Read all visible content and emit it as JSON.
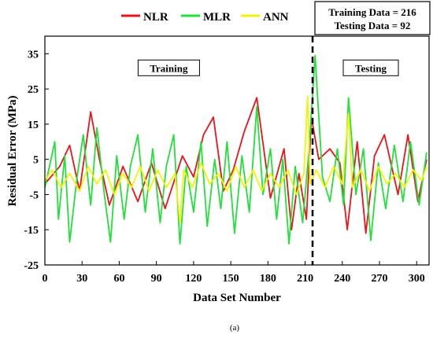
{
  "chart_data": {
    "type": "line",
    "xlabel": "Data Set Number",
    "ylabel": "Residual Error (MPa)",
    "xlim": [
      0,
      310
    ],
    "ylim": [
      -25,
      40
    ],
    "x_ticks": [
      0,
      30,
      60,
      90,
      120,
      150,
      180,
      210,
      240,
      270,
      300
    ],
    "y_ticks": [
      -25,
      -15,
      -5,
      5,
      15,
      25,
      35
    ],
    "grid": false,
    "legend_placement": "top",
    "caption": "(a)",
    "info_box": [
      "Training Data = 216",
      "Testing Data = 92"
    ],
    "split_x": 216,
    "region_labels": [
      {
        "text": "Training",
        "x": 100,
        "y": 31
      },
      {
        "text": "Testing",
        "x": 263,
        "y": 31
      }
    ],
    "series": [
      {
        "name": "NLR",
        "color": "#e8141c",
        "points": [
          [
            0,
            -2
          ],
          [
            12,
            3
          ],
          [
            20,
            9
          ],
          [
            28,
            -4
          ],
          [
            37,
            18.5
          ],
          [
            44,
            5
          ],
          [
            52,
            -8
          ],
          [
            63,
            3
          ],
          [
            75,
            -7
          ],
          [
            86,
            4
          ],
          [
            97,
            -9
          ],
          [
            111,
            6
          ],
          [
            120,
            0
          ],
          [
            128,
            12
          ],
          [
            136,
            17
          ],
          [
            144,
            -4
          ],
          [
            152,
            2
          ],
          [
            161,
            13
          ],
          [
            171,
            22.5
          ],
          [
            182,
            -6
          ],
          [
            193,
            8
          ],
          [
            199,
            -15
          ],
          [
            205,
            1
          ],
          [
            211,
            -12
          ],
          [
            215,
            17
          ],
          [
            221,
            5
          ],
          [
            230,
            8
          ],
          [
            238,
            4
          ],
          [
            244,
            -15
          ],
          [
            252,
            10
          ],
          [
            259,
            -16
          ],
          [
            266,
            6
          ],
          [
            274,
            12
          ],
          [
            285,
            -5
          ],
          [
            293,
            12
          ],
          [
            301,
            -7
          ],
          [
            308,
            5
          ]
        ]
      },
      {
        "name": "MLR",
        "color": "#22e03a",
        "points": [
          [
            0,
            -3
          ],
          [
            8,
            10
          ],
          [
            11,
            -12
          ],
          [
            16,
            6
          ],
          [
            20,
            -18.5
          ],
          [
            26,
            0
          ],
          [
            31,
            12
          ],
          [
            37,
            -8
          ],
          [
            42,
            14
          ],
          [
            48,
            -5
          ],
          [
            53,
            -18.5
          ],
          [
            58,
            6
          ],
          [
            64,
            -12
          ],
          [
            69,
            3
          ],
          [
            75,
            12
          ],
          [
            81,
            -10
          ],
          [
            87,
            8
          ],
          [
            93,
            -13
          ],
          [
            98,
            3
          ],
          [
            104,
            12
          ],
          [
            109,
            -19
          ],
          [
            114,
            3
          ],
          [
            120,
            -10
          ],
          [
            126,
            10
          ],
          [
            131,
            -14
          ],
          [
            137,
            5
          ],
          [
            142,
            -9
          ],
          [
            147,
            10
          ],
          [
            153,
            -16
          ],
          [
            159,
            6
          ],
          [
            165,
            -10
          ],
          [
            171,
            20
          ],
          [
            176,
            -5
          ],
          [
            182,
            8
          ],
          [
            187,
            -12
          ],
          [
            192,
            5
          ],
          [
            197,
            -19
          ],
          [
            202,
            3
          ],
          [
            208,
            -13
          ],
          [
            213,
            7
          ],
          [
            218,
            34.5
          ],
          [
            224,
            0
          ],
          [
            230,
            -7
          ],
          [
            236,
            8
          ],
          [
            241,
            -8
          ],
          [
            245,
            22.5
          ],
          [
            251,
            -5
          ],
          [
            257,
            8
          ],
          [
            263,
            -18
          ],
          [
            269,
            4
          ],
          [
            275,
            -9
          ],
          [
            282,
            9
          ],
          [
            289,
            -7
          ],
          [
            295,
            10
          ],
          [
            302,
            -8
          ],
          [
            308,
            7
          ]
        ]
      },
      {
        "name": "ANN",
        "color": "#f5f20a",
        "points": [
          [
            0,
            -1
          ],
          [
            6,
            2
          ],
          [
            13,
            -3
          ],
          [
            20,
            1
          ],
          [
            28,
            -4
          ],
          [
            35,
            3
          ],
          [
            42,
            -2
          ],
          [
            49,
            2
          ],
          [
            56,
            -5
          ],
          [
            63,
            1
          ],
          [
            70,
            -3
          ],
          [
            77,
            3
          ],
          [
            84,
            -4
          ],
          [
            91,
            2
          ],
          [
            98,
            -3
          ],
          [
            105,
            1
          ],
          [
            109,
            -13
          ],
          [
            112,
            2
          ],
          [
            119,
            -3
          ],
          [
            126,
            4
          ],
          [
            133,
            -2
          ],
          [
            140,
            1
          ],
          [
            147,
            -4
          ],
          [
            154,
            3
          ],
          [
            161,
            -3
          ],
          [
            168,
            2
          ],
          [
            175,
            -4
          ],
          [
            182,
            1
          ],
          [
            189,
            -3
          ],
          [
            196,
            2
          ],
          [
            203,
            -5
          ],
          [
            209,
            1
          ],
          [
            212,
            23
          ],
          [
            214,
            -2
          ],
          [
            219,
            2
          ],
          [
            226,
            -3
          ],
          [
            233,
            3
          ],
          [
            240,
            -2
          ],
          [
            245,
            18
          ],
          [
            248,
            -3
          ],
          [
            255,
            2
          ],
          [
            262,
            -4
          ],
          [
            269,
            3
          ],
          [
            276,
            -2
          ],
          [
            283,
            1
          ],
          [
            290,
            -3
          ],
          [
            297,
            2
          ],
          [
            304,
            -1
          ],
          [
            308,
            3
          ]
        ]
      }
    ]
  }
}
